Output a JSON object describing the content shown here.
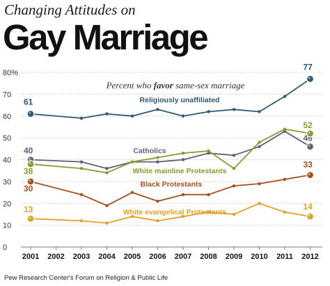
{
  "header": {
    "subtitle": "Changing Attitudes on",
    "title": "Gay Marriage"
  },
  "source": "Pew Research Center's Forum on Religion & Public Life",
  "chart_data": {
    "type": "line",
    "annotation_prefix": "Percent who ",
    "annotation_emphasis": "favor",
    "annotation_suffix": " same-sex marriage",
    "x": [
      "2001",
      "2002",
      "2003",
      "2004",
      "2005",
      "2006",
      "2007",
      "2008",
      "2009",
      "2010",
      "2011",
      "2012"
    ],
    "ylim": [
      0,
      80
    ],
    "yticks": [
      "0",
      "10",
      "20",
      "30",
      "40",
      "50",
      "60",
      "70",
      "80%"
    ],
    "grid": true,
    "series": [
      {
        "name": "Religiously unaffiliated",
        "color": "#2f5872",
        "values": [
          61,
          null,
          59,
          61,
          60,
          63,
          60,
          62,
          63,
          62,
          69,
          77
        ],
        "start_label": "61",
        "end_label": "77"
      },
      {
        "name": "Catholics",
        "color": "#6a5a78",
        "values": [
          40,
          null,
          39,
          36,
          39,
          39,
          40,
          43,
          42,
          46,
          53,
          46
        ],
        "start_label": "40",
        "end_label": "46"
      },
      {
        "name": "White mainline Protestants",
        "color": "#8a9a2c",
        "values": [
          38,
          null,
          36,
          34,
          39,
          41,
          43,
          44,
          36,
          48,
          54,
          52
        ],
        "start_label": "38",
        "end_label": "52"
      },
      {
        "name": "Black Protestants",
        "color": "#a4501e",
        "values": [
          30,
          null,
          24,
          19,
          25,
          21,
          24,
          24,
          28,
          29,
          31,
          33
        ],
        "start_label": "30",
        "end_label": "33"
      },
      {
        "name": "White evangelical Protestants",
        "color": "#e3a021",
        "values": [
          13,
          null,
          12,
          11,
          14,
          12,
          14,
          16,
          15,
          20,
          16,
          14
        ],
        "start_label": "13",
        "end_label": "14"
      }
    ]
  }
}
